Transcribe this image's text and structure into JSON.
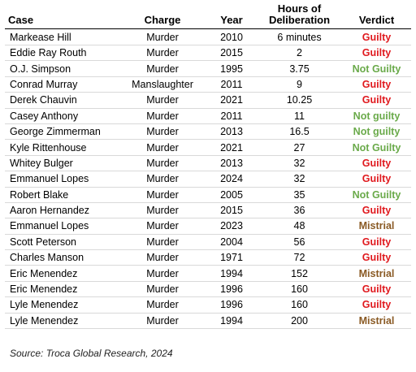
{
  "headers": {
    "case": "Case",
    "charge": "Charge",
    "year": "Year",
    "hours_line1": "Hours of",
    "hours_line2": "Deliberation",
    "verdict": "Verdict"
  },
  "rows": [
    {
      "case": "Markease Hill",
      "charge": "Murder",
      "year": "2010",
      "hours": "6 minutes",
      "verdict": "Guilty",
      "verdict_type": "guilty"
    },
    {
      "case": "Eddie Ray Routh",
      "charge": "Murder",
      "year": "2015",
      "hours": "2",
      "verdict": "Guilty",
      "verdict_type": "guilty"
    },
    {
      "case": "O.J. Simpson",
      "charge": "Murder",
      "year": "1995",
      "hours": "3.75",
      "verdict": "Not Guilty",
      "verdict_type": "notguilty"
    },
    {
      "case": "Conrad Murray",
      "charge": "Manslaughter",
      "year": "2011",
      "hours": "9",
      "verdict": "Guilty",
      "verdict_type": "guilty"
    },
    {
      "case": "Derek Chauvin",
      "charge": "Murder",
      "year": "2021",
      "hours": "10.25",
      "verdict": "Guilty",
      "verdict_type": "guilty"
    },
    {
      "case": "Casey Anthony",
      "charge": "Murder",
      "year": "2011",
      "hours": "11",
      "verdict": "Not guilty",
      "verdict_type": "notguilty"
    },
    {
      "case": "George Zimmerman",
      "charge": "Murder",
      "year": "2013",
      "hours": "16.5",
      "verdict": "Not guilty",
      "verdict_type": "notguilty"
    },
    {
      "case": "Kyle Rittenhouse",
      "charge": "Murder",
      "year": "2021",
      "hours": "27",
      "verdict": "Not Guilty",
      "verdict_type": "notguilty"
    },
    {
      "case": "Whitey Bulger",
      "charge": "Murder",
      "year": "2013",
      "hours": "32",
      "verdict": "Guilty",
      "verdict_type": "guilty"
    },
    {
      "case": "Emmanuel Lopes",
      "charge": "Murder",
      "year": "2024",
      "hours": "32",
      "verdict": "Guilty",
      "verdict_type": "guilty"
    },
    {
      "case": "Robert Blake",
      "charge": "Murder",
      "year": "2005",
      "hours": "35",
      "verdict": "Not Guilty",
      "verdict_type": "notguilty"
    },
    {
      "case": "Aaron Hernandez",
      "charge": "Murder",
      "year": "2015",
      "hours": "36",
      "verdict": "Guilty",
      "verdict_type": "guilty"
    },
    {
      "case": "Emmanuel Lopes",
      "charge": "Murder",
      "year": "2023",
      "hours": "48",
      "verdict": "Mistrial",
      "verdict_type": "mistrial"
    },
    {
      "case": "Scott Peterson",
      "charge": "Murder",
      "year": "2004",
      "hours": "56",
      "verdict": "Guilty",
      "verdict_type": "guilty"
    },
    {
      "case": "Charles Manson",
      "charge": "Murder",
      "year": "1971",
      "hours": "72",
      "verdict": "Guilty",
      "verdict_type": "guilty"
    },
    {
      "case": "Eric Menendez",
      "charge": "Murder",
      "year": "1994",
      "hours": "152",
      "verdict": "Mistrial",
      "verdict_type": "mistrial"
    },
    {
      "case": "Eric Menendez",
      "charge": "Murder",
      "year": "1996",
      "hours": "160",
      "verdict": "Guilty",
      "verdict_type": "guilty"
    },
    {
      "case": "Lyle Menendez",
      "charge": "Murder",
      "year": "1996",
      "hours": "160",
      "verdict": "Guilty",
      "verdict_type": "guilty"
    },
    {
      "case": "Lyle Menendez",
      "charge": "Murder",
      "year": "1994",
      "hours": "200",
      "verdict": "Mistrial",
      "verdict_type": "mistrial"
    }
  ],
  "colors": {
    "guilty": "#e0191e",
    "notguilty": "#6aaa4a",
    "mistrial": "#8a5a24"
  },
  "source": "Source: Troca Global Research, 2024"
}
